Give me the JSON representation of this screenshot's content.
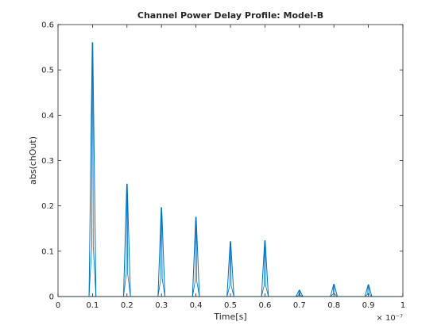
{
  "chart_data": {
    "type": "line",
    "title": "Channel Power Delay Profile: Model-B",
    "xlabel": "Time[s]",
    "ylabel": "abs(chOut)",
    "x_exponent_label": "× 10⁻⁷",
    "xlim": [
      0,
      1e-07
    ],
    "ylim": [
      0,
      0.6
    ],
    "x_ticks": [
      0,
      1e-08,
      2e-08,
      3e-08,
      4e-08,
      5e-08,
      6e-08,
      7e-08,
      8e-08,
      9e-08,
      1e-07
    ],
    "x_tick_labels": [
      "0",
      "0.1",
      "0.2",
      "0.3",
      "0.4",
      "0.5",
      "0.6",
      "0.7",
      "0.8",
      "0.9",
      "1"
    ],
    "y_ticks": [
      0,
      0.1,
      0.2,
      0.3,
      0.4,
      0.5,
      0.6
    ],
    "y_tick_labels": [
      "0",
      "0.1",
      "0.2",
      "0.3",
      "0.4",
      "0.5",
      "0.6"
    ],
    "grid": false,
    "series": [
      {
        "color": "#0072bd",
        "peaks": [
          {
            "x": 1e-08,
            "y": 0.56
          },
          {
            "x": 2e-08,
            "y": 0.248
          },
          {
            "x": 3e-08,
            "y": 0.196
          },
          {
            "x": 4e-08,
            "y": 0.175
          },
          {
            "x": 5e-08,
            "y": 0.121
          },
          {
            "x": 6e-08,
            "y": 0.123
          },
          {
            "x": 7e-08,
            "y": 0.014
          },
          {
            "x": 8e-08,
            "y": 0.027
          },
          {
            "x": 9e-08,
            "y": 0.026
          }
        ]
      }
    ]
  }
}
